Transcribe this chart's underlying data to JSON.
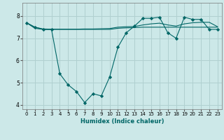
{
  "xlabel": "Humidex (Indice chaleur)",
  "background_color": "#cce8e8",
  "grid_color": "#b0d0d0",
  "line_color": "#006666",
  "xlim": [
    -0.5,
    23.5
  ],
  "ylim": [
    3.8,
    8.6
  ],
  "yticks": [
    4,
    5,
    6,
    7,
    8
  ],
  "xticks": [
    0,
    1,
    2,
    3,
    4,
    5,
    6,
    7,
    8,
    9,
    10,
    11,
    12,
    13,
    14,
    15,
    16,
    17,
    18,
    19,
    20,
    21,
    22,
    23
  ],
  "series_main": {
    "x": [
      0,
      1,
      2,
      3,
      4,
      5,
      6,
      7,
      8,
      9,
      10,
      11,
      12,
      13,
      14,
      15,
      16,
      17,
      18,
      19,
      20,
      21,
      22,
      23
    ],
    "y": [
      7.7,
      7.5,
      7.4,
      7.4,
      5.4,
      4.9,
      4.6,
      4.1,
      4.5,
      4.4,
      5.25,
      6.6,
      7.25,
      7.55,
      7.9,
      7.9,
      7.95,
      7.25,
      7.0,
      7.95,
      7.85,
      7.85,
      7.4,
      7.4
    ]
  },
  "series_flat1": {
    "x": [
      0,
      1,
      2,
      3,
      4,
      5,
      6,
      7,
      8,
      9,
      10,
      11,
      12,
      13,
      14,
      15,
      16,
      17,
      18,
      19,
      20,
      21,
      22,
      23
    ],
    "y": [
      7.7,
      7.45,
      7.4,
      7.4,
      7.4,
      7.4,
      7.4,
      7.4,
      7.4,
      7.4,
      7.4,
      7.45,
      7.47,
      7.48,
      7.5,
      7.5,
      7.5,
      7.5,
      7.5,
      7.5,
      7.5,
      7.5,
      7.5,
      7.5
    ]
  },
  "series_flat2": {
    "x": [
      0,
      1,
      2,
      3,
      4,
      5,
      6,
      7,
      8,
      9,
      10,
      11,
      12,
      13,
      14,
      15,
      16,
      17,
      18,
      19,
      20,
      21,
      22,
      23
    ],
    "y": [
      7.7,
      7.5,
      7.42,
      7.41,
      7.41,
      7.41,
      7.41,
      7.42,
      7.42,
      7.43,
      7.44,
      7.5,
      7.52,
      7.53,
      7.6,
      7.65,
      7.68,
      7.6,
      7.55,
      7.65,
      7.7,
      7.72,
      7.72,
      7.52
    ]
  }
}
